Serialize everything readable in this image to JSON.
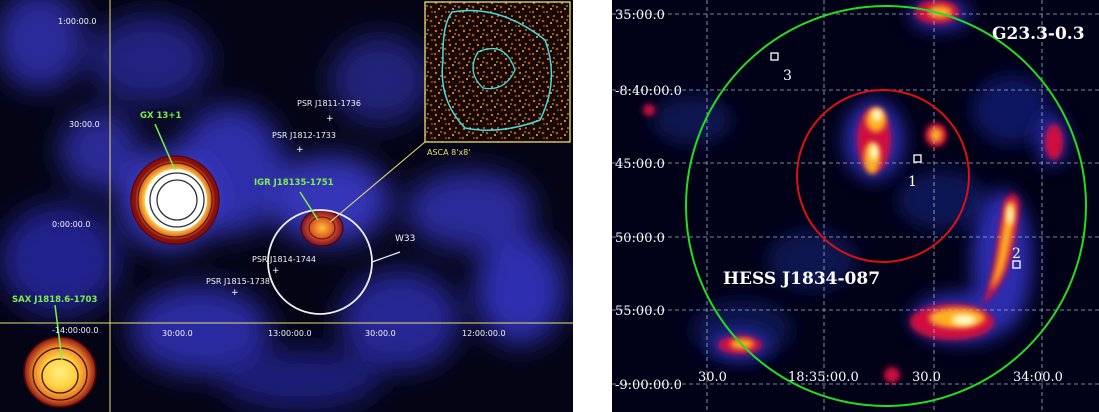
{
  "left_panel": {
    "axis_y_labels": [
      "1:00:00.0",
      "30:00.0",
      "0:00:00.0",
      "-14:00:00.0"
    ],
    "axis_x_labels": [
      "30:00.0",
      "13:00:00.0",
      "30:00.0",
      "12:00:00.0"
    ],
    "green_labels": {
      "gx": "GX 13+1",
      "igr": "IGR J18135-1751",
      "sax": "SAX J1818.6-1703"
    },
    "white_labels": {
      "psr1": "PSR J1811-1736",
      "psr2": "PSR J1812-1733",
      "psr3": "PSR J1814-1744",
      "psr4": "PSR J1815-1738",
      "w33": "W33"
    },
    "inset_label": "ASCA 8'x8'",
    "colors": {
      "frame_line": "#e8e070",
      "green_text": "#7cf04a",
      "circle": "#ffffff"
    }
  },
  "right_panel": {
    "title": "G23.3-0.3",
    "source_label": "HESS J1834-087",
    "axis_y_labels": [
      "35:00.0",
      "-8:40:00.0",
      "45:00.0",
      "50:00.0",
      "55:00.0",
      "-9:00:00.0"
    ],
    "axis_x_labels": [
      "30.0",
      "18:35:00.0",
      "30.0",
      "34:00.0"
    ],
    "markers": [
      "1",
      "2",
      "3"
    ],
    "colors": {
      "big_circle": "#22dd22",
      "small_circle": "#dd1111",
      "grid": "#9fb5c8"
    }
  }
}
